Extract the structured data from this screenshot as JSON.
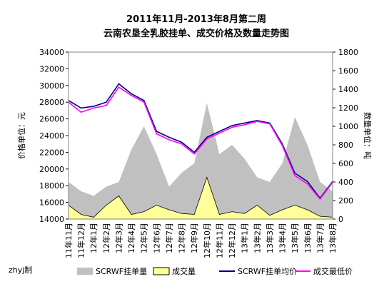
{
  "chart_data": {
    "type": "combo",
    "title": "2011年11月-2013年8月第二周",
    "subtitle": "云南农垦全乳胶挂单、成交价格及数量走势图",
    "ylabel": "价格单位：元",
    "y2label": "数量单位：吨",
    "credit": "zhyj制",
    "categories": [
      "11年11月",
      "11年12月",
      "12年1月",
      "12年2月",
      "12年3月",
      "12年4月",
      "12年5月",
      "12年6月",
      "12年7月",
      "12年8月",
      "12年9月",
      "12年10月",
      "12年11月",
      "12年12月",
      "13年1月",
      "13年2月",
      "13年3月",
      "13年4月",
      "13年5月",
      "13年6月",
      "13年7月",
      "13年8月"
    ],
    "ylim": [
      14000,
      34000
    ],
    "yticks": [
      14000,
      16000,
      18000,
      20000,
      22000,
      24000,
      26000,
      28000,
      30000,
      32000,
      34000
    ],
    "y2lim": [
      0,
      1800
    ],
    "y2ticks": [
      0,
      200,
      400,
      600,
      800,
      1000,
      1200,
      1400,
      1600,
      1800
    ],
    "grid": false,
    "legend": "bottom",
    "series": [
      {
        "name": "SCRWF挂单量",
        "type": "area",
        "axis": "y2",
        "color": "#c0c0c0",
        "values": [
          400,
          300,
          250,
          350,
          400,
          750,
          1000,
          700,
          350,
          500,
          600,
          1250,
          700,
          800,
          650,
          450,
          400,
          600,
          1100,
          800,
          400,
          300
        ]
      },
      {
        "name": "成交量",
        "type": "area",
        "axis": "y2",
        "color": "#ffff99",
        "values": [
          150,
          50,
          20,
          150,
          250,
          50,
          80,
          150,
          100,
          60,
          50,
          450,
          50,
          80,
          60,
          150,
          40,
          100,
          150,
          100,
          30,
          20
        ]
      },
      {
        "name": "SCRWF挂单均价",
        "type": "line",
        "axis": "y",
        "color": "#000080",
        "values": [
          28200,
          27300,
          27500,
          28000,
          30200,
          29000,
          28200,
          24500,
          23800,
          23200,
          22000,
          23800,
          24500,
          25200,
          25500,
          25800,
          25500,
          23000,
          19500,
          18500,
          16500,
          18500
        ]
      },
      {
        "name": "成交最低价",
        "type": "line",
        "axis": "y",
        "color": "#ff00ff",
        "values": [
          28000,
          26800,
          27300,
          27600,
          29800,
          28800,
          28000,
          24200,
          23500,
          23000,
          21800,
          23600,
          24300,
          25000,
          25300,
          25700,
          25400,
          22800,
          19200,
          18200,
          16400,
          18400
        ]
      }
    ]
  }
}
